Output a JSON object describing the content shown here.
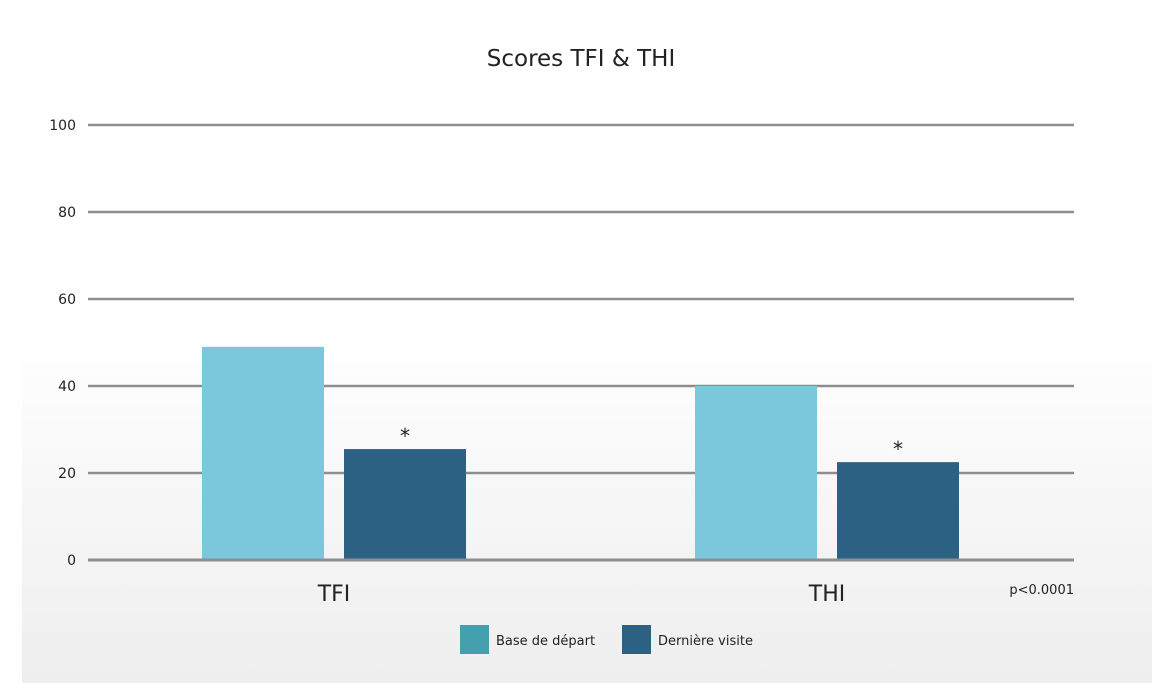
{
  "chart_data": {
    "type": "bar",
    "title": "Scores TFI & THI",
    "categories": [
      "TFI",
      "THI"
    ],
    "series": [
      {
        "name": "Base de départ",
        "values": [
          49,
          40
        ],
        "color": "#7bc8dc"
      },
      {
        "name": "Dernière visite",
        "values": [
          25.5,
          22.5
        ],
        "color": "#2c6184"
      }
    ],
    "ylim": [
      0,
      100
    ],
    "yticks": [
      0,
      20,
      40,
      60,
      80,
      100
    ],
    "grid": true,
    "legend_position": "bottom",
    "legend_colors": [
      "#44a0ae",
      "#2c6184"
    ],
    "annotations": {
      "significance_marker": "*",
      "p_value": "p<0.0001"
    }
  },
  "colors": {
    "grid": "#8e8e8e",
    "axis_text": "#222222",
    "panel_gradient_top": "#ffffff",
    "panel_gradient_bottom": "#eeeeee"
  }
}
